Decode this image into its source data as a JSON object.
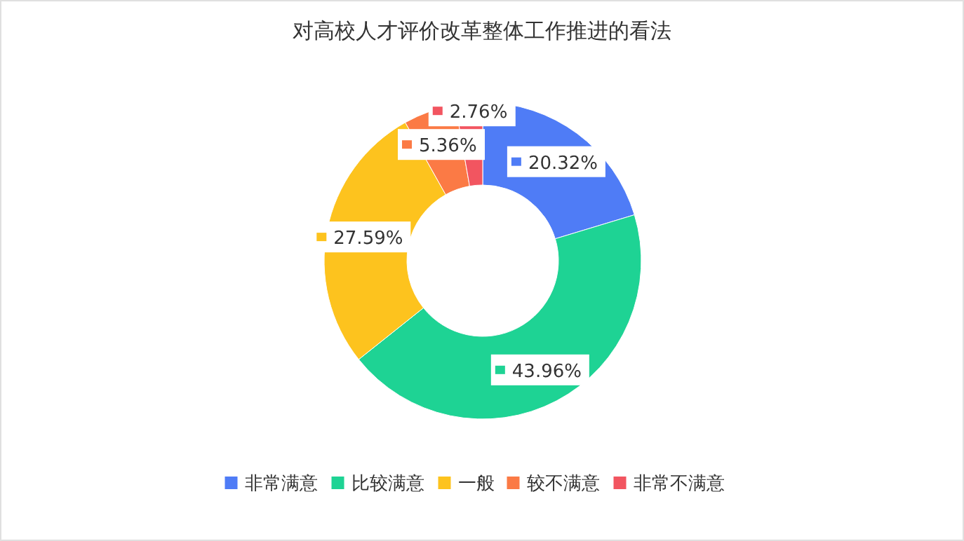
{
  "chart_data": {
    "type": "donut",
    "title": "对高校人才评价改革整体工作推进的看法",
    "categories": [
      "非常满意",
      "比较满意",
      "一般",
      "较不满意",
      "非常不满意"
    ],
    "values": [
      20.32,
      43.96,
      27.59,
      5.36,
      2.76
    ],
    "value_labels": [
      "20.32%",
      "43.96%",
      "27.59%",
      "5.36%",
      "2.76%"
    ],
    "colors": [
      "#4f7cf6",
      "#1ed394",
      "#fdc31e",
      "#fb7a45",
      "#f25560"
    ],
    "legend": "bottom"
  }
}
